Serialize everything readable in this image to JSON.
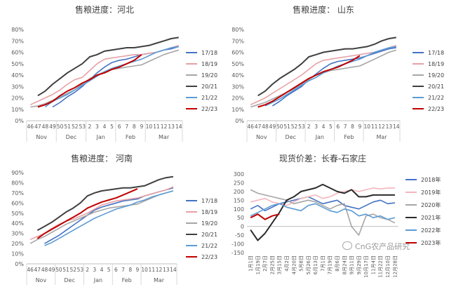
{
  "chart_data": [
    {
      "type": "line",
      "title": "售粮进度：河北",
      "x": [
        "46",
        "47",
        "48",
        "49",
        "50",
        "51",
        "52",
        "53",
        "2",
        "3",
        "4",
        "5",
        "6",
        "7",
        "8",
        "9",
        "10",
        "11",
        "12",
        "13",
        "14"
      ],
      "x_groups": [
        {
          "label": "Nov",
          "from": 0,
          "to": 3
        },
        {
          "label": "Dec",
          "from": 4,
          "to": 7
        },
        {
          "label": "Jan",
          "from": 8,
          "to": 11
        },
        {
          "label": "Feb",
          "from": 12,
          "to": 15
        },
        {
          "label": "Mar",
          "from": 16,
          "to": 20
        }
      ],
      "ylim": [
        0,
        80
      ],
      "yticks": [
        0,
        10,
        20,
        30,
        40,
        50,
        60,
        70,
        80
      ],
      "ytick_format": "percent",
      "grid": false,
      "legend": "right",
      "series": [
        {
          "name": "17/18",
          "color": "#4472c4",
          "values": [
            null,
            null,
            null,
            12,
            16,
            21,
            25,
            30,
            36,
            42,
            47,
            51,
            53,
            54,
            56,
            58,
            59,
            60,
            62,
            63,
            65
          ]
        },
        {
          "name": "18/19",
          "color": "#e6a1a6",
          "values": [
            14,
            17,
            20,
            23,
            27,
            32,
            36,
            38,
            44,
            50,
            54,
            55,
            56,
            57,
            58,
            58,
            59,
            60,
            62,
            64,
            66
          ]
        },
        {
          "name": "19/20",
          "color": "#a6a6a6",
          "values": [
            12,
            13,
            15,
            18,
            21,
            24,
            27,
            32,
            37,
            40,
            43,
            45,
            46,
            47,
            48,
            49,
            52,
            55,
            58,
            60,
            62
          ]
        },
        {
          "name": "20/21",
          "color": "#404040",
          "values": [
            null,
            22,
            26,
            32,
            37,
            42,
            46,
            50,
            56,
            58,
            61,
            62,
            63,
            64,
            64,
            65,
            66,
            68,
            70,
            72,
            73
          ]
        },
        {
          "name": "21/22",
          "color": "#5b9bd5",
          "values": [
            null,
            null,
            12,
            17,
            20,
            23,
            27,
            31,
            35,
            39,
            43,
            46,
            48,
            50,
            52,
            54,
            57,
            60,
            62,
            64,
            65
          ]
        },
        {
          "name": "22/23",
          "color": "#c00000",
          "values": [
            null,
            12,
            14,
            17,
            22,
            26,
            29,
            33,
            36,
            40,
            42,
            45,
            47,
            50,
            53,
            58,
            null,
            null,
            null,
            null,
            null
          ]
        }
      ]
    },
    {
      "type": "line",
      "title": "售粮进度：  山东",
      "x": [
        "46",
        "47",
        "48",
        "49",
        "50",
        "51",
        "52",
        "53",
        "2",
        "3",
        "4",
        "5",
        "6",
        "7",
        "8",
        "9",
        "10",
        "11",
        "12",
        "13",
        "14"
      ],
      "x_groups": [
        {
          "label": "Nov",
          "from": 0,
          "to": 3
        },
        {
          "label": "Dec",
          "from": 4,
          "to": 7
        },
        {
          "label": "Jan",
          "from": 8,
          "to": 11
        },
        {
          "label": "Feb",
          "from": 12,
          "to": 15
        },
        {
          "label": "Mar",
          "from": 16,
          "to": 20
        }
      ],
      "ylim": [
        0,
        80
      ],
      "yticks": [
        0,
        10,
        20,
        30,
        40,
        50,
        60,
        70,
        80
      ],
      "ytick_format": "percent",
      "grid": false,
      "legend": "right",
      "series": [
        {
          "name": "17/18",
          "color": "#4472c4",
          "values": [
            null,
            null,
            null,
            13,
            17,
            22,
            26,
            30,
            36,
            41,
            46,
            50,
            52,
            53,
            54,
            55,
            57,
            59,
            61,
            63,
            64
          ]
        },
        {
          "name": "18/19",
          "color": "#e6a1a6",
          "values": [
            14,
            17,
            20,
            24,
            28,
            32,
            36,
            40,
            45,
            50,
            53,
            54,
            55,
            56,
            57,
            58,
            59,
            60,
            62,
            64,
            66
          ]
        },
        {
          "name": "19/20",
          "color": "#a6a6a6",
          "values": [
            12,
            14,
            16,
            19,
            22,
            25,
            28,
            32,
            36,
            40,
            42,
            44,
            45,
            46,
            47,
            48,
            51,
            54,
            57,
            60,
            62
          ]
        },
        {
          "name": "20/21",
          "color": "#404040",
          "values": [
            null,
            22,
            26,
            32,
            37,
            41,
            45,
            50,
            56,
            58,
            60,
            61,
            62,
            63,
            63,
            64,
            65,
            67,
            70,
            72,
            73
          ]
        },
        {
          "name": "21/22",
          "color": "#5b9bd5",
          "values": [
            null,
            null,
            13,
            16,
            19,
            23,
            27,
            31,
            35,
            38,
            42,
            45,
            48,
            50,
            52,
            54,
            57,
            60,
            62,
            64,
            65
          ]
        },
        {
          "name": "22/23",
          "color": "#c00000",
          "values": [
            null,
            12,
            14,
            17,
            21,
            25,
            29,
            33,
            37,
            40,
            43,
            45,
            47,
            50,
            53,
            57,
            null,
            null,
            null,
            null,
            null
          ]
        }
      ]
    },
    {
      "type": "line",
      "title": "售粮进度：  河南",
      "x": [
        "46",
        "47",
        "48",
        "49",
        "50",
        "51",
        "52",
        "53",
        "2",
        "3",
        "4",
        "5",
        "6",
        "7",
        "8",
        "9",
        "10",
        "11",
        "12",
        "13",
        "14"
      ],
      "x_groups": [
        {
          "label": "Nov",
          "from": 0,
          "to": 3
        },
        {
          "label": "Dec",
          "from": 4,
          "to": 7
        },
        {
          "label": "Jan",
          "from": 8,
          "to": 11
        },
        {
          "label": "Feb",
          "from": 12,
          "to": 15
        },
        {
          "label": "Mar",
          "from": 16,
          "to": 20
        }
      ],
      "ylim": [
        0,
        90
      ],
      "yticks": [
        0,
        10,
        20,
        30,
        40,
        50,
        60,
        70,
        80,
        90
      ],
      "ytick_format": "percent",
      "grid": false,
      "legend": "right",
      "series": [
        {
          "name": "17/18",
          "color": "#4472c4",
          "values": [
            null,
            null,
            20,
            24,
            28,
            33,
            38,
            43,
            48,
            53,
            56,
            58,
            60,
            62,
            63,
            64,
            67,
            69,
            71,
            73,
            75
          ]
        },
        {
          "name": "18/19",
          "color": "#e6a1a6",
          "values": [
            24,
            27,
            30,
            35,
            39,
            42,
            44,
            47,
            50,
            54,
            58,
            60,
            62,
            63,
            64,
            65,
            67,
            69,
            71,
            73,
            76
          ]
        },
        {
          "name": "19/20",
          "color": "#a6a6a6",
          "values": [
            20,
            24,
            27,
            31,
            35,
            39,
            42,
            45,
            48,
            51,
            53,
            55,
            56,
            57,
            58,
            59,
            62,
            65,
            68,
            70,
            72
          ]
        },
        {
          "name": "20/21",
          "color": "#404040",
          "values": [
            null,
            33,
            37,
            41,
            46,
            51,
            55,
            60,
            67,
            70,
            72,
            73,
            74,
            75,
            75,
            76,
            77,
            80,
            83,
            85,
            86
          ]
        },
        {
          "name": "21/22",
          "color": "#5b9bd5",
          "values": [
            null,
            null,
            18,
            21,
            25,
            29,
            33,
            37,
            41,
            45,
            48,
            51,
            54,
            56,
            58,
            61,
            63,
            66,
            68,
            70,
            72
          ]
        },
        {
          "name": "22/23",
          "color": "#c00000",
          "values": [
            null,
            25,
            30,
            34,
            38,
            42,
            46,
            50,
            55,
            58,
            61,
            63,
            65,
            68,
            71,
            74,
            null,
            null,
            null,
            null,
            null
          ]
        }
      ]
    },
    {
      "type": "line",
      "title": "现货价差：长春-石家庄",
      "x": [
        "1月1日",
        "1月19日",
        "2月7日",
        "2月25日",
        "3月15日",
        "4月2日",
        "4月20日",
        "5月8日",
        "5月26日",
        "6月13日",
        "7月1日",
        "7月19日",
        "8月6日",
        "8月24日",
        "9月11日",
        "9月29日",
        "10月17日",
        "11月4日",
        "11月22日",
        "12月10日",
        "12月28日"
      ],
      "ylim": [
        -150,
        300
      ],
      "yticks": [
        -150,
        -100,
        -50,
        0,
        50,
        100,
        150,
        200,
        250,
        300
      ],
      "grid": false,
      "legend": "right",
      "series": [
        {
          "name": "2018年",
          "color": "#4472c4",
          "values": [
            100,
            120,
            90,
            110,
            130,
            140,
            150,
            160,
            170,
            150,
            130,
            140,
            150,
            120,
            110,
            100,
            120,
            140,
            150,
            130,
            135
          ]
        },
        {
          "name": "2019年",
          "color": "#f4b6bd",
          "values": [
            140,
            150,
            160,
            140,
            130,
            120,
            140,
            160,
            170,
            180,
            160,
            170,
            190,
            200,
            210,
            200,
            210,
            220,
            215,
            220,
            220
          ]
        },
        {
          "name": "2020年",
          "color": "#a6a6a6",
          "values": [
            210,
            190,
            180,
            170,
            160,
            150,
            130,
            140,
            150,
            140,
            120,
            100,
            120,
            130,
            0,
            -50,
            60,
            70,
            50,
            40,
            20
          ]
        },
        {
          "name": "2021年",
          "color": "#2b2b2b",
          "values": [
            -20,
            -80,
            -40,
            20,
            80,
            150,
            170,
            200,
            210,
            220,
            240,
            220,
            200,
            190,
            210,
            170,
            170,
            180,
            180,
            180,
            180
          ]
        },
        {
          "name": "2022年",
          "color": "#5b9bd5",
          "values": [
            60,
            80,
            100,
            120,
            130,
            110,
            100,
            90,
            120,
            130,
            110,
            90,
            80,
            100,
            90,
            60,
            70,
            50,
            60,
            40,
            50
          ]
        },
        {
          "name": "2023年",
          "color": "#c00000",
          "values": [
            50,
            70,
            40,
            60,
            70,
            null,
            null,
            null,
            null,
            null,
            null,
            null,
            null,
            null,
            null,
            null,
            null,
            null,
            null,
            null,
            null
          ]
        }
      ]
    }
  ],
  "watermark": {
    "text": "CnG农产品研究",
    "icon": "wechat-icon"
  }
}
